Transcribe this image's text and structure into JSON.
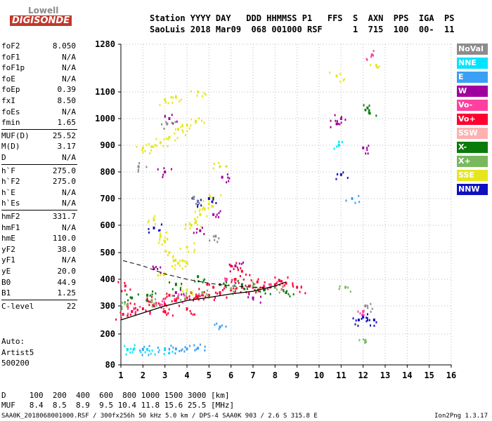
{
  "logo": {
    "top": "Lowell",
    "bottom": "DIGISONDE"
  },
  "header": {
    "line1": "Station YYYY DAY   DDD HHMMSS P1   FFS  S  AXN  PPS  IGA  PS",
    "line2": "SaoLuis 2018 Mar09  068 001000 RSF      1  715  100  00-  11"
  },
  "params": [
    {
      "name": "foF2",
      "value": "8.050"
    },
    {
      "name": "foF1",
      "value": "N/A"
    },
    {
      "name": "foF1p",
      "value": "N/A"
    },
    {
      "name": "foE",
      "value": "N/A"
    },
    {
      "name": "foEp",
      "value": "0.39"
    },
    {
      "name": "fxI",
      "value": "8.50"
    },
    {
      "name": "foEs",
      "value": "N/A"
    },
    {
      "name": "fmin",
      "value": "1.65"
    },
    {
      "name": "MUF(D)",
      "value": "25.52"
    },
    {
      "name": "M(D)",
      "value": "3.17"
    },
    {
      "name": "D",
      "value": "N/A"
    },
    {
      "name": "h`F",
      "value": "275.0"
    },
    {
      "name": "h`F2",
      "value": "275.0"
    },
    {
      "name": "h`E",
      "value": "N/A"
    },
    {
      "name": "h`Es",
      "value": "N/A"
    },
    {
      "name": "hmF2",
      "value": "331.7"
    },
    {
      "name": "hmF1",
      "value": "N/A"
    },
    {
      "name": "hmE",
      "value": "110.0"
    },
    {
      "name": "yF2",
      "value": "38.0"
    },
    {
      "name": "yF1",
      "value": "N/A"
    },
    {
      "name": "yE",
      "value": "20.0"
    },
    {
      "name": "B0",
      "value": "44.9"
    },
    {
      "name": "B1",
      "value": "1.25"
    },
    {
      "name": "C-level",
      "value": "22"
    }
  ],
  "auto": {
    "line1": "Auto:",
    "line2": "Artist5",
    "line3": "500200"
  },
  "legend": [
    {
      "label": "NoVal",
      "color": "#8c8c8c"
    },
    {
      "label": "NNE",
      "color": "#00e5ff"
    },
    {
      "label": "E",
      "color": "#3aa0f5"
    },
    {
      "label": "W",
      "color": "#a0009e"
    },
    {
      "label": "Vo-",
      "color": "#ff40a0"
    },
    {
      "label": "Vo+",
      "color": "#ff0030"
    },
    {
      "label": "SSW",
      "color": "#ffb0b0"
    },
    {
      "label": "X-",
      "color": "#0a7a0a"
    },
    {
      "label": "X+",
      "color": "#7ab860"
    },
    {
      "label": "SSE",
      "color": "#e6e61e"
    },
    {
      "label": "NNW",
      "color": "#1010c0"
    }
  ],
  "distance_table": {
    "d_line": "D     100  200  400  600  800 1000 1500 3000 [km]",
    "muf_line": "MUF   8.4  8.5  8.9  9.5 10.4 11.8 15.6 25.5 [MHz]"
  },
  "footer": {
    "left": "SAA0K_2018068001000.RSF / 300fx256h 50 kHz 5.0 km / DPS-4 SAA0K 903 / 2.6 S 315.8 E",
    "right": "Ion2Png 1.3.17"
  },
  "chart_data": {
    "type": "scatter",
    "title": "",
    "xlabel": "",
    "ylabel": "",
    "x_ticks": [
      1,
      2,
      3,
      4,
      5,
      6,
      7,
      8,
      9,
      10,
      11,
      12,
      13,
      14,
      15,
      16
    ],
    "y_ticks": [
      80,
      200,
      300,
      400,
      500,
      600,
      700,
      800,
      900,
      1000,
      1100,
      1280
    ],
    "xlim": [
      1,
      16
    ],
    "ylim": [
      80,
      1280
    ],
    "y_axis_note": "non-linear virtual height scale",
    "grid": true,
    "legend_position": "right",
    "series": [
      {
        "name": "Vo+",
        "color": "#ff0030",
        "points": [
          [
            1.1,
            270
          ],
          [
            1.5,
            280
          ],
          [
            2.0,
            290
          ],
          [
            2.5,
            300
          ],
          [
            3.0,
            305
          ],
          [
            3.5,
            320
          ],
          [
            4.0,
            330
          ],
          [
            4.5,
            335
          ],
          [
            5.0,
            340
          ],
          [
            5.5,
            350
          ],
          [
            6.0,
            360
          ],
          [
            6.5,
            370
          ],
          [
            7.0,
            370
          ],
          [
            7.5,
            375
          ],
          [
            8.0,
            380
          ],
          [
            8.5,
            385
          ],
          [
            9.0,
            370
          ],
          [
            1.3,
            300
          ],
          [
            2.2,
            320
          ],
          [
            3.2,
            340
          ],
          [
            4.2,
            350
          ],
          [
            5.2,
            370
          ],
          [
            6.2,
            400
          ],
          [
            7.2,
            390
          ],
          [
            8.2,
            395
          ],
          [
            1.2,
            375
          ],
          [
            3.0,
            280
          ],
          [
            4.0,
            290
          ],
          [
            6.5,
            430
          ],
          [
            6.0,
            450
          ]
        ]
      },
      {
        "name": "W",
        "color": "#a0009e",
        "points": [
          [
            2.5,
            440
          ],
          [
            3.0,
            800
          ],
          [
            3.2,
            1000
          ],
          [
            3.5,
            350
          ],
          [
            4.6,
            580
          ],
          [
            5.2,
            640
          ],
          [
            5.6,
            780
          ],
          [
            6.2,
            450
          ],
          [
            7.0,
            330
          ],
          [
            11.0,
            1000
          ],
          [
            12.0,
            890
          ],
          [
            10.8,
            980
          ]
        ]
      },
      {
        "name": "X-",
        "color": "#0a7a0a",
        "points": [
          [
            1.5,
            330
          ],
          [
            2.2,
            340
          ],
          [
            3.5,
            380
          ],
          [
            4.5,
            410
          ],
          [
            5.5,
            380
          ],
          [
            6.5,
            380
          ],
          [
            7.5,
            360
          ],
          [
            8.5,
            350
          ],
          [
            12.2,
            1040
          ],
          [
            12.3,
            1020
          ]
        ]
      },
      {
        "name": "X+",
        "color": "#7ab860",
        "points": [
          [
            1.3,
            305
          ],
          [
            2.4,
            315
          ],
          [
            3.6,
            335
          ],
          [
            4.7,
            350
          ],
          [
            6.0,
            365
          ],
          [
            7.0,
            375
          ],
          [
            8.0,
            370
          ],
          [
            11.2,
            370
          ],
          [
            12.1,
            175
          ]
        ]
      },
      {
        "name": "SSE",
        "color": "#e6e61e",
        "points": [
          [
            2.0,
            890
          ],
          [
            2.4,
            895
          ],
          [
            2.8,
            910
          ],
          [
            3.2,
            930
          ],
          [
            3.6,
            960
          ],
          [
            4.0,
            975
          ],
          [
            4.4,
            990
          ],
          [
            2.5,
            620
          ],
          [
            2.8,
            560
          ],
          [
            3.0,
            540
          ],
          [
            3.2,
            500
          ],
          [
            3.4,
            470
          ],
          [
            3.6,
            460
          ],
          [
            3.8,
            470
          ],
          [
            4.0,
            520
          ],
          [
            4.2,
            600
          ],
          [
            4.4,
            610
          ],
          [
            4.6,
            640
          ],
          [
            4.8,
            660
          ],
          [
            5.0,
            680
          ],
          [
            5.2,
            700
          ],
          [
            3.0,
            1070
          ],
          [
            3.5,
            1080
          ],
          [
            4.5,
            1100
          ],
          [
            3.0,
            420
          ],
          [
            4.0,
            360
          ],
          [
            5.5,
            820
          ],
          [
            10.8,
            1160
          ],
          [
            12.6,
            1200
          ]
        ]
      },
      {
        "name": "E",
        "color": "#3aa0f5",
        "points": [
          [
            3.0,
            140
          ],
          [
            3.5,
            142
          ],
          [
            4.0,
            142
          ],
          [
            4.5,
            145
          ],
          [
            2.0,
            140
          ],
          [
            5.5,
            225
          ],
          [
            11.5,
            700
          ]
        ]
      },
      {
        "name": "NNW",
        "color": "#1010c0",
        "points": [
          [
            2.5,
            590
          ],
          [
            4.5,
            690
          ],
          [
            5.0,
            700
          ],
          [
            11.0,
            790
          ],
          [
            12.0,
            260
          ],
          [
            12.5,
            250
          ],
          [
            11.8,
            250
          ]
        ]
      },
      {
        "name": "NNE",
        "color": "#00e5ff",
        "points": [
          [
            1.3,
            140
          ],
          [
            1.6,
            142
          ],
          [
            2.2,
            140
          ],
          [
            3.0,
            143
          ],
          [
            10.9,
            900
          ]
        ]
      },
      {
        "name": "Vo-",
        "color": "#ff40a0",
        "points": [
          [
            1.6,
            290
          ],
          [
            2.6,
            310
          ],
          [
            3.6,
            330
          ],
          [
            5.8,
            400
          ],
          [
            7.8,
            380
          ],
          [
            12.0,
            280
          ],
          [
            12.4,
            1240
          ]
        ]
      },
      {
        "name": "NoVal",
        "color": "#8c8c8c",
        "points": [
          [
            1.8,
            820
          ],
          [
            3.1,
            980
          ],
          [
            4.3,
            700
          ],
          [
            5.3,
            560
          ],
          [
            12.1,
            300
          ]
        ]
      }
    ],
    "profile_curve": [
      [
        1.0,
        250
      ],
      [
        2.0,
        275
      ],
      [
        3.0,
        300
      ],
      [
        4.0,
        320
      ],
      [
        5.0,
        332
      ],
      [
        6.0,
        345
      ],
      [
        7.0,
        355
      ],
      [
        8.0,
        375
      ],
      [
        8.5,
        390
      ]
    ],
    "dashed_curve": [
      [
        1.1,
        470
      ],
      [
        2.0,
        450
      ],
      [
        3.0,
        420
      ],
      [
        4.0,
        400
      ],
      [
        5.0,
        385
      ],
      [
        6.0,
        375
      ],
      [
        7.0,
        370
      ],
      [
        8.0,
        368
      ]
    ]
  }
}
